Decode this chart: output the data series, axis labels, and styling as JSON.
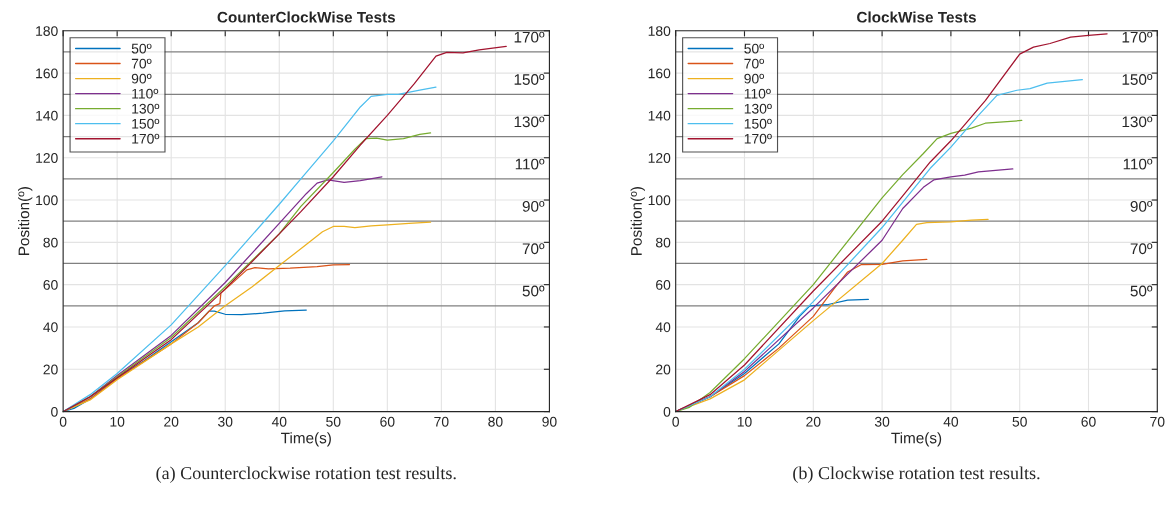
{
  "chart_data": [
    {
      "type": "line",
      "title": "CounterClockWise Tests",
      "xlabel": "Time(s)",
      "ylabel": "Position(º)",
      "xlim": [
        0,
        90
      ],
      "ylim": [
        0,
        180
      ],
      "xticks": [
        0,
        10,
        20,
        30,
        40,
        50,
        60,
        70,
        80,
        90
      ],
      "yticks": [
        0,
        20,
        40,
        60,
        80,
        100,
        120,
        140,
        160,
        180
      ],
      "grid": true,
      "legend": "top left",
      "ref_lines": [
        {
          "axis": "y",
          "value": 50,
          "label": "50º",
          "color": "#808080"
        },
        {
          "axis": "y",
          "value": 70,
          "label": "70º",
          "color": "#808080"
        },
        {
          "axis": "y",
          "value": 90,
          "label": "90º",
          "color": "#808080"
        },
        {
          "axis": "y",
          "value": 110,
          "label": "110º",
          "color": "#808080"
        },
        {
          "axis": "y",
          "value": 130,
          "label": "130º",
          "color": "#808080"
        },
        {
          "axis": "y",
          "value": 150,
          "label": "150º",
          "color": "#808080"
        },
        {
          "axis": "y",
          "value": 170,
          "label": "170º",
          "color": "#808080"
        }
      ],
      "series": [
        {
          "name": "50º",
          "color": "#0072bd",
          "x": [
            0,
            2,
            5,
            10,
            15,
            20,
            25,
            27,
            28,
            30,
            33,
            37,
            41,
            45
          ],
          "values": [
            0,
            1.5,
            6,
            16,
            24,
            33,
            42,
            47.5,
            47.5,
            46,
            45.8,
            46.5,
            47.6,
            48
          ]
        },
        {
          "name": "70º",
          "color": "#d95319",
          "x": [
            0,
            5,
            10,
            20,
            25,
            28,
            29,
            29.2,
            31,
            34,
            35.5,
            38,
            42,
            47,
            50,
            53
          ],
          "values": [
            0,
            6,
            15.5,
            32,
            42,
            50,
            51,
            56,
            60,
            67,
            68,
            67.5,
            67.8,
            68.5,
            69.3,
            69.5
          ]
        },
        {
          "name": "90º",
          "color": "#edb120",
          "x": [
            0,
            5,
            10,
            20,
            25,
            30,
            35,
            40,
            45,
            48,
            50,
            52,
            54,
            57,
            60,
            64,
            68
          ],
          "values": [
            0,
            5.5,
            15,
            32,
            40,
            50,
            59,
            69,
            79,
            85,
            87.5,
            87.5,
            87,
            87.8,
            88.3,
            89,
            89.5
          ]
        },
        {
          "name": "110º",
          "color": "#7e2f8e",
          "x": [
            0,
            5,
            10,
            20,
            30,
            40,
            45,
            47,
            49,
            52,
            55,
            59
          ],
          "values": [
            0,
            7,
            17,
            36,
            61,
            89,
            103,
            108,
            109.5,
            108.3,
            109.2,
            111
          ]
        },
        {
          "name": "130º",
          "color": "#77ac30",
          "x": [
            0,
            5,
            10,
            20,
            30,
            40,
            44,
            50,
            54,
            56,
            58,
            60,
            63,
            66,
            68
          ],
          "values": [
            0,
            7,
            16.5,
            35,
            59,
            84,
            97,
            113,
            124,
            129,
            129.3,
            128.3,
            129,
            131,
            131.7
          ]
        },
        {
          "name": "150º",
          "color": "#4dbeee",
          "x": [
            0,
            5,
            10,
            20,
            30,
            40,
            44,
            50,
            55,
            57,
            60,
            62,
            66,
            69
          ],
          "values": [
            0,
            8,
            18,
            41,
            69,
            98,
            110,
            128,
            144,
            149,
            150,
            150,
            152,
            153.4
          ]
        },
        {
          "name": "170º",
          "color": "#a2142f",
          "x": [
            0,
            5,
            10,
            20,
            30,
            40,
            44,
            50,
            55,
            60,
            65,
            69,
            71,
            74,
            77,
            82
          ],
          "values": [
            0,
            7,
            16,
            34,
            58,
            84,
            94.5,
            111,
            126,
            140,
            155,
            168,
            169.8,
            169.6,
            171,
            172.6
          ]
        }
      ],
      "annotations": [
        "(a) Counterclockwise rotation test results."
      ]
    },
    {
      "type": "line",
      "title": "ClockWise Tests",
      "xlabel": "Time(s)",
      "ylabel": "Position(º)",
      "xlim": [
        0,
        70
      ],
      "ylim": [
        0,
        180
      ],
      "xticks": [
        0,
        10,
        20,
        30,
        40,
        50,
        60,
        70
      ],
      "yticks": [
        0,
        20,
        40,
        60,
        80,
        100,
        120,
        140,
        160,
        180
      ],
      "grid": true,
      "legend": "top left",
      "ref_lines": [
        {
          "axis": "y",
          "value": 50,
          "label": "50º",
          "color": "#808080"
        },
        {
          "axis": "y",
          "value": 70,
          "label": "70º",
          "color": "#808080"
        },
        {
          "axis": "y",
          "value": 90,
          "label": "90º",
          "color": "#808080"
        },
        {
          "axis": "y",
          "value": 110,
          "label": "110º",
          "color": "#808080"
        },
        {
          "axis": "y",
          "value": 130,
          "label": "130º",
          "color": "#808080"
        },
        {
          "axis": "y",
          "value": 150,
          "label": "150º",
          "color": "#808080"
        },
        {
          "axis": "y",
          "value": 170,
          "label": "170º",
          "color": "#808080"
        }
      ],
      "series": [
        {
          "name": "50º",
          "color": "#0072bd",
          "x": [
            0,
            5,
            10,
            15,
            18,
            19.5,
            22,
            25,
            28
          ],
          "values": [
            0,
            7,
            18,
            32,
            45,
            50,
            50.5,
            52.7,
            53
          ]
        },
        {
          "name": "70º",
          "color": "#d95319",
          "x": [
            0,
            5,
            10,
            15,
            20,
            23,
            25,
            27,
            30,
            33,
            36.5
          ],
          "values": [
            0,
            7,
            17,
            30,
            45,
            58,
            66,
            69.5,
            69.6,
            71.2,
            71.9
          ]
        },
        {
          "name": "90º",
          "color": "#edb120",
          "x": [
            0,
            5,
            10,
            20,
            30,
            33,
            35,
            36.5,
            40,
            43,
            45.4
          ],
          "values": [
            0,
            6,
            15,
            43,
            70,
            81,
            88.5,
            89.3,
            89.7,
            90.5,
            90.8
          ]
        },
        {
          "name": "110º",
          "color": "#7e2f8e",
          "x": [
            0,
            5,
            10,
            20,
            30,
            33,
            36,
            37.5,
            40,
            42,
            44,
            49
          ],
          "values": [
            0,
            7,
            19,
            49,
            81,
            96,
            106,
            109.5,
            111,
            111.8,
            113.3,
            114.7
          ]
        },
        {
          "name": "130º",
          "color": "#77ac30",
          "x": [
            0,
            2,
            5,
            10,
            20,
            30,
            33,
            36,
            38,
            40,
            43,
            45,
            50.3
          ],
          "values": [
            0,
            2,
            9,
            25,
            60,
            101,
            112,
            122,
            129,
            131.5,
            134,
            136.3,
            137.6
          ]
        },
        {
          "name": "150º",
          "color": "#4dbeee",
          "x": [
            0,
            5,
            10,
            20,
            30,
            37,
            40,
            44,
            46.7,
            49.6,
            51.5,
            54,
            59.1
          ],
          "values": [
            0,
            7,
            20,
            52,
            87,
            115,
            125,
            140,
            149.5,
            151.9,
            152.7,
            155.3,
            156.9
          ]
        },
        {
          "name": "170º",
          "color": "#a2142f",
          "x": [
            0,
            5,
            10,
            20,
            30,
            33,
            37,
            40,
            45,
            50,
            52,
            54.4,
            57.4,
            60,
            62.7
          ],
          "values": [
            0,
            8,
            22,
            57,
            90,
            102,
            118,
            128,
            147,
            169,
            172.3,
            174,
            177,
            177.8,
            178.6
          ]
        }
      ],
      "annotations": [
        "(b) Clockwise rotation test results."
      ]
    }
  ]
}
